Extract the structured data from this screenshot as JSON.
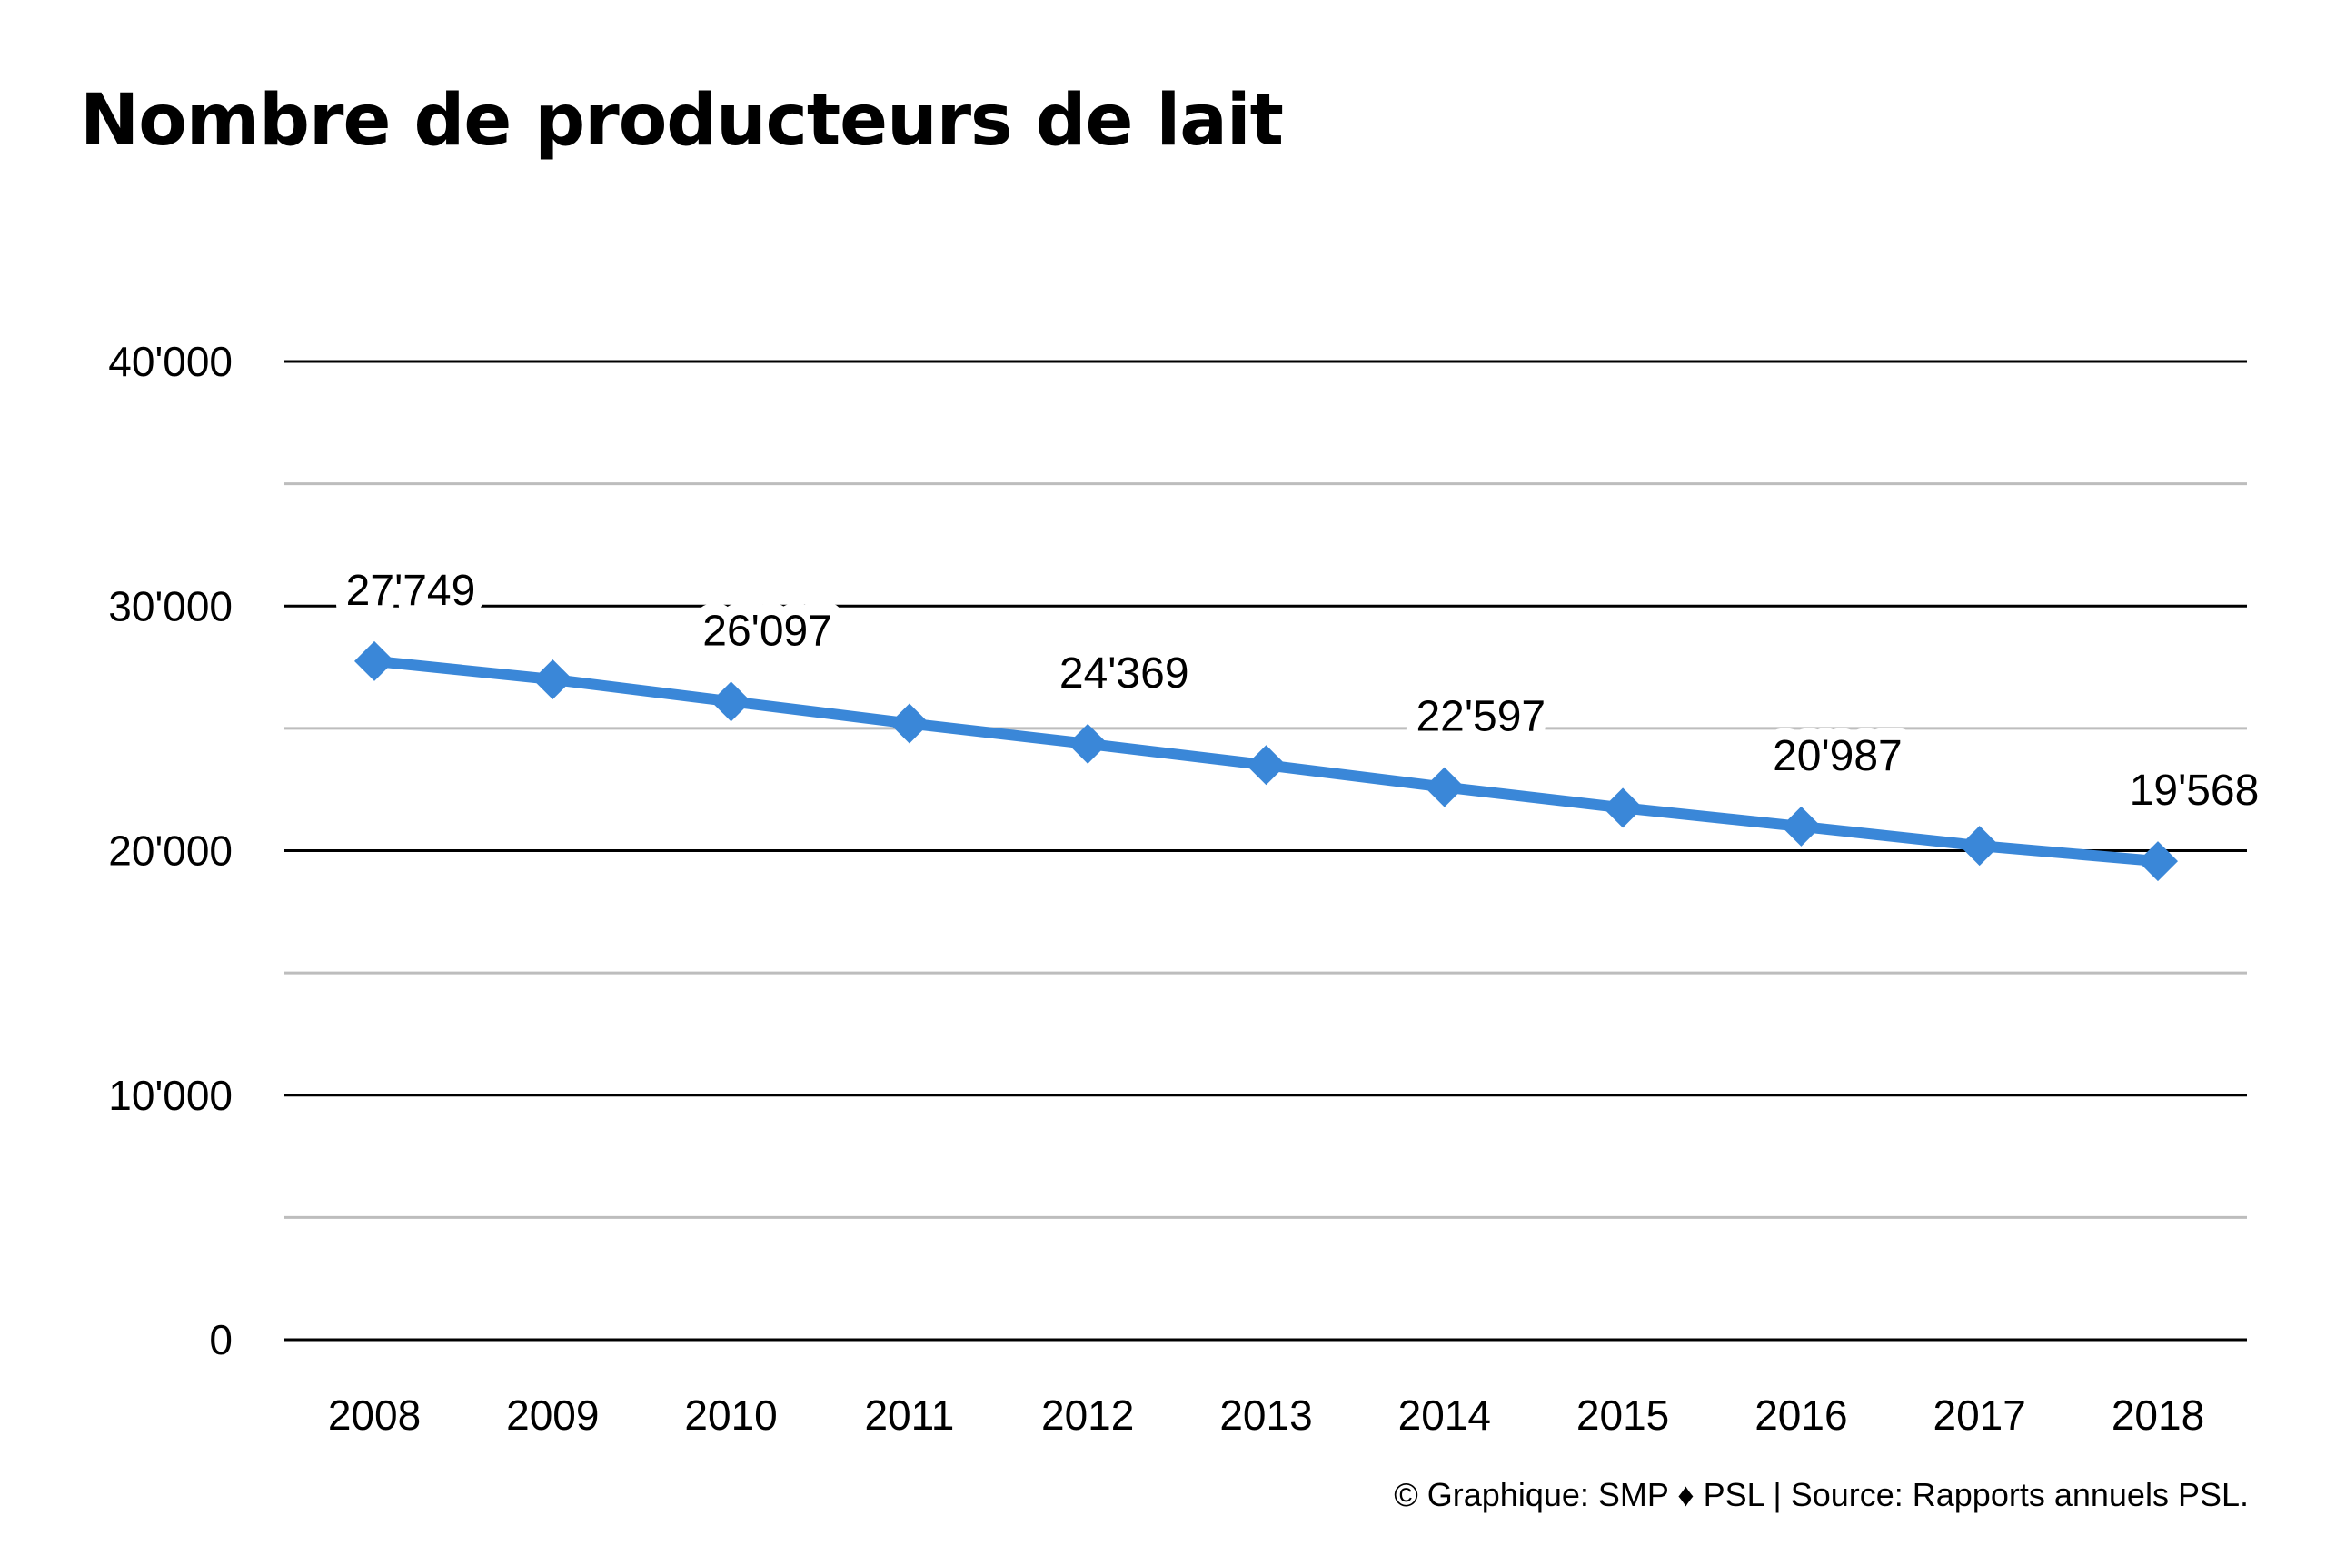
{
  "title": "Nombre de producteurs de lait",
  "credit": "© Graphique: SMP ♦ PSL | Source: Rapports annuels PSL.",
  "colors": {
    "line": "#3a87d8",
    "major_grid": "#000000",
    "minor_grid": "#bdbdbd",
    "text": "#000000"
  },
  "chart_data": {
    "type": "line",
    "categories": [
      "2008",
      "2009",
      "2010",
      "2011",
      "2012",
      "2013",
      "2014",
      "2015",
      "2016",
      "2017",
      "2018"
    ],
    "series": [
      {
        "values": [
          27749,
          27000,
          26097,
          25200,
          24369,
          23500,
          22597,
          21750,
          20987,
          20200,
          19568
        ]
      }
    ],
    "data_labels": [
      {
        "index": 0,
        "text": "27'749"
      },
      {
        "index": 2,
        "text": "26'097"
      },
      {
        "index": 4,
        "text": "24'369"
      },
      {
        "index": 6,
        "text": "22'597"
      },
      {
        "index": 8,
        "text": "20'987"
      },
      {
        "index": 10,
        "text": "19'568"
      }
    ],
    "ylim": [
      0,
      40000
    ],
    "major_ticks": [
      0,
      10000,
      20000,
      30000,
      40000
    ],
    "minor_ticks": [
      5000,
      15000,
      25000,
      35000
    ],
    "y_tick_labels": [
      "0",
      "10'000",
      "20'000",
      "30'000",
      "40'000"
    ],
    "marker": "diamond",
    "grid": true,
    "legend": "none"
  }
}
